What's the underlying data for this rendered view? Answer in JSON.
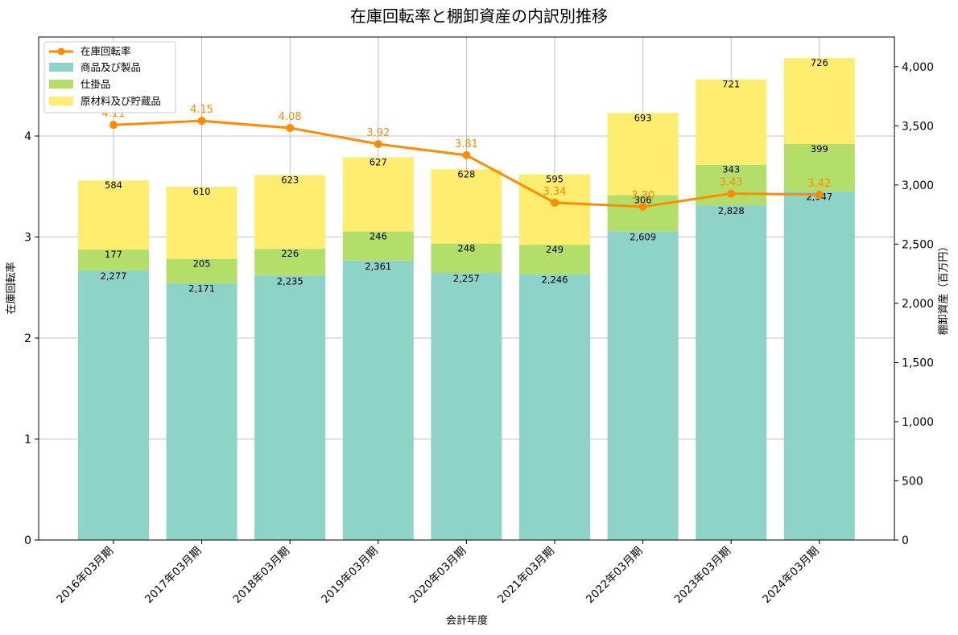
{
  "chart_data": {
    "type": "bar",
    "title": "在庫回転率と棚卸資産の内訳別推移",
    "xlabel": "会計年度",
    "ylabel_left": "在庫回転率",
    "ylabel_right": "棚卸資産（百万円）",
    "categories": [
      "2016年03月期",
      "2017年03月期",
      "2018年03月期",
      "2019年03月期",
      "2020年03月期",
      "2021年03月期",
      "2022年03月期",
      "2023年03月期",
      "2024年03月期"
    ],
    "series": [
      {
        "name": "商品及び製品",
        "kind": "stacked-bar",
        "axis": "right",
        "color": "#8dd3c7",
        "values": [
          2277,
          2171,
          2235,
          2361,
          2257,
          2246,
          2609,
          2828,
          2947
        ],
        "labels": [
          "2,277",
          "2,171",
          "2,235",
          "2,361",
          "2,257",
          "2,246",
          "2,609",
          "2,828",
          "2,947"
        ]
      },
      {
        "name": "仕掛品",
        "kind": "stacked-bar",
        "axis": "right",
        "color": "#b3de69",
        "values": [
          177,
          205,
          226,
          246,
          248,
          249,
          306,
          343,
          399
        ],
        "labels": [
          "177",
          "205",
          "226",
          "246",
          "248",
          "249",
          "306",
          "343",
          "399"
        ]
      },
      {
        "name": "原材料及び貯蔵品",
        "kind": "stacked-bar",
        "axis": "right",
        "color": "#ffed6f",
        "values": [
          584,
          610,
          623,
          627,
          628,
          595,
          693,
          721,
          726
        ],
        "labels": [
          "584",
          "610",
          "623",
          "627",
          "628",
          "595",
          "693",
          "721",
          "726"
        ]
      },
      {
        "name": "在庫回転率",
        "kind": "line",
        "axis": "left",
        "color": "#ff8c00",
        "values": [
          4.11,
          4.15,
          4.08,
          3.92,
          3.81,
          3.34,
          3.3,
          3.43,
          3.42
        ],
        "labels": [
          "4.11",
          "4.15",
          "4.08",
          "3.92",
          "3.81",
          "3.34",
          "3.30",
          "3.43",
          "3.42"
        ]
      }
    ],
    "ylim_left": [
      0,
      4.98
    ],
    "yticks_left": [
      0,
      1,
      2,
      3,
      4
    ],
    "ytick_labels_left": [
      "0",
      "1",
      "2",
      "3",
      "4"
    ],
    "ylim_right": [
      0,
      4250
    ],
    "yticks_right": [
      0,
      500,
      1000,
      1500,
      2000,
      2500,
      3000,
      3500,
      4000
    ],
    "ytick_labels_right": [
      "0",
      "500",
      "1,000",
      "1,500",
      "2,000",
      "2,500",
      "3,000",
      "3,500",
      "4,000"
    ],
    "grid": true,
    "legend": "top-left"
  }
}
